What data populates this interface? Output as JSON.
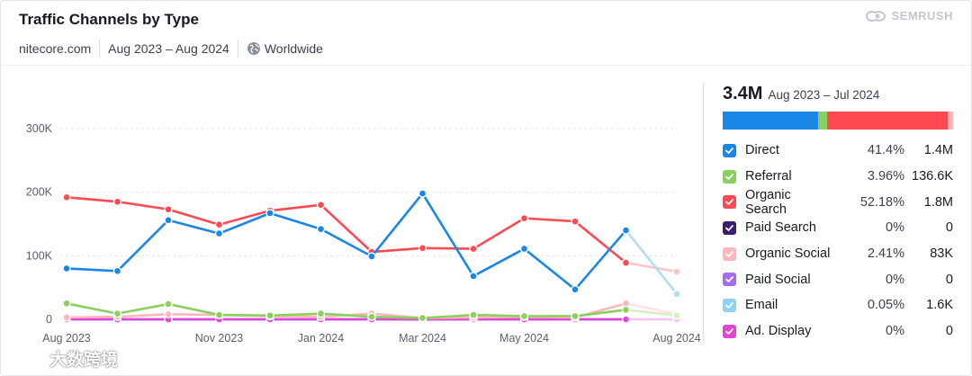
{
  "header": {
    "title": "Traffic Channels by Type",
    "brand": "SEMRUSH",
    "domain": "nitecore.com",
    "date_range": "Aug 2023 – Aug 2024",
    "region": "Worldwide"
  },
  "summary": {
    "total": "3.4M",
    "range": "Aug 2023 – Jul 2024"
  },
  "legend": [
    {
      "name": "Direct",
      "pct": "41.4%",
      "value": "1.4M",
      "color": "#1a87e8"
    },
    {
      "name": "Referral",
      "pct": "3.96%",
      "value": "136.6K",
      "color": "#8bd05c"
    },
    {
      "name": "Organic Search",
      "pct": "52.18%",
      "value": "1.8M",
      "color": "#ff4953"
    },
    {
      "name": "Paid Search",
      "pct": "0%",
      "value": "0",
      "color": "#3b1c6e"
    },
    {
      "name": "Organic Social",
      "pct": "2.41%",
      "value": "83K",
      "color": "#ffb7bb"
    },
    {
      "name": "Paid Social",
      "pct": "0%",
      "value": "0",
      "color": "#a56cf0"
    },
    {
      "name": "Email",
      "pct": "0.05%",
      "value": "1.6K",
      "color": "#8fd0f7"
    },
    {
      "name": "Ad. Display",
      "pct": "0%",
      "value": "0",
      "color": "#e444d6"
    }
  ],
  "watermark": "大数跨境",
  "chart_data": {
    "type": "line",
    "x": [
      "Aug 2023",
      "Sep 2023",
      "Oct 2023",
      "Nov 2023",
      "Dec 2023",
      "Jan 2024",
      "Feb 2024",
      "Mar 2024",
      "Apr 2024",
      "May 2024",
      "Jun 2024",
      "Jul 2024",
      "Aug 2024"
    ],
    "xtick_labels": [
      "Aug 2023",
      "Nov 2023",
      "Jan 2024",
      "Mar 2024",
      "May 2024",
      "Aug 2024"
    ],
    "xtick_index": [
      0,
      3,
      5,
      7,
      9,
      12
    ],
    "ylim": [
      0,
      300000
    ],
    "yticks": [
      0,
      100000,
      200000,
      300000
    ],
    "ytick_labels": [
      "0",
      "100K",
      "200K",
      "300K"
    ],
    "partial_last_point": true,
    "series": [
      {
        "name": "Direct",
        "color": "#1a87e8",
        "faded": "#b5dcf6",
        "values": [
          80000,
          76000,
          156000,
          135000,
          167000,
          142000,
          99000,
          198000,
          68000,
          111000,
          47000,
          140000,
          40000
        ]
      },
      {
        "name": "Referral",
        "color": "#8bd05c",
        "faded": "#d6efc4",
        "values": [
          25000,
          9000,
          24000,
          7000,
          6000,
          9000,
          4000,
          2000,
          7000,
          5000,
          5000,
          15000,
          6000
        ]
      },
      {
        "name": "Organic Search",
        "color": "#ff4953",
        "faded": "#ffc2c5",
        "values": [
          192000,
          185000,
          173000,
          149000,
          171000,
          180000,
          106000,
          112000,
          111000,
          159000,
          154000,
          89000,
          75000
        ]
      },
      {
        "name": "Paid Search",
        "color": "#3b1c6e",
        "faded": "#c9bedc",
        "values": [
          0,
          0,
          0,
          0,
          0,
          0,
          0,
          0,
          0,
          0,
          0,
          0,
          0
        ]
      },
      {
        "name": "Organic Social",
        "color": "#ffb7bb",
        "faded": "#ffe3e5",
        "values": [
          3000,
          4000,
          8000,
          7000,
          5000,
          4000,
          9000,
          2000,
          3000,
          4000,
          3000,
          25000,
          8000
        ]
      },
      {
        "name": "Paid Social",
        "color": "#a56cf0",
        "faded": "#e3d3fa",
        "values": [
          0,
          0,
          0,
          0,
          0,
          0,
          0,
          0,
          0,
          0,
          0,
          0,
          0
        ]
      },
      {
        "name": "Email",
        "color": "#8fd0f7",
        "faded": "#d9effc",
        "values": [
          0,
          0,
          0,
          0,
          0,
          0,
          0,
          0,
          0,
          0,
          0,
          0,
          0
        ]
      },
      {
        "name": "Ad. Display",
        "color": "#e444d6",
        "faded": "#f7c6f2",
        "values": [
          0,
          0,
          0,
          0,
          0,
          0,
          0,
          0,
          0,
          0,
          0,
          0,
          0
        ]
      }
    ]
  }
}
